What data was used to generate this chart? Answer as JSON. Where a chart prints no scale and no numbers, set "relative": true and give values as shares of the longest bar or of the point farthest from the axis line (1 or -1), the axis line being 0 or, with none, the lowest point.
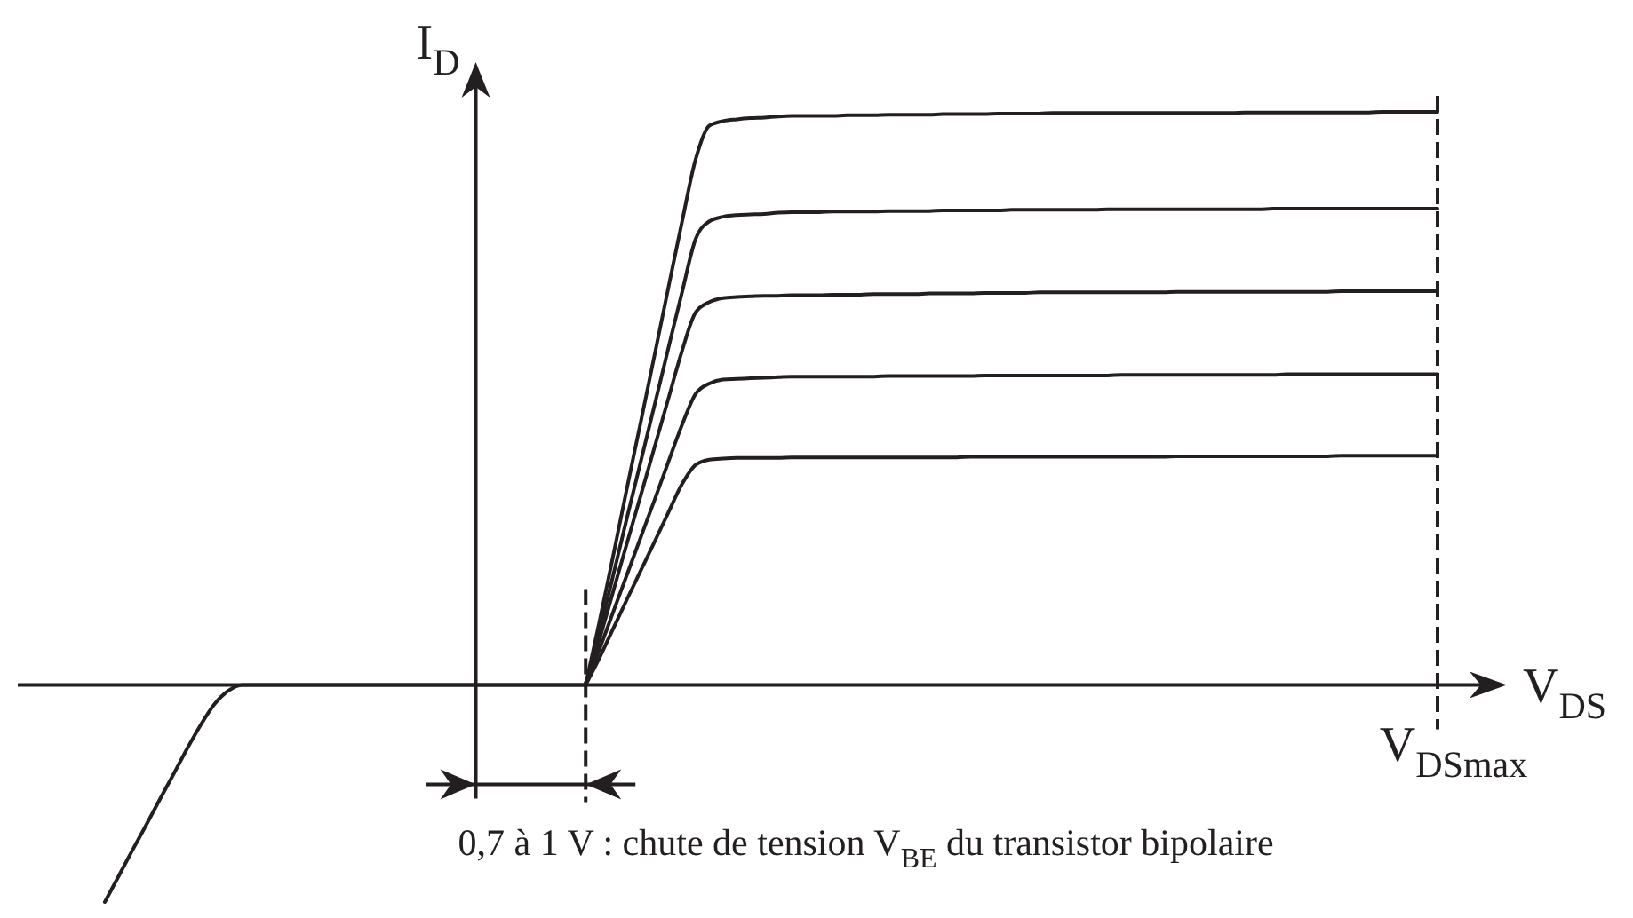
{
  "chart_data": {
    "type": "line",
    "relative": true,
    "xlabel": "V$_{DS}$",
    "ylabel": "I$_{D}$",
    "categories": [
      null,
      null,
      null,
      null,
      null,
      null,
      null,
      null,
      null,
      null,
      null,
      null,
      null,
      null,
      null,
      null,
      null,
      null,
      null,
      null,
      null,
      null,
      null,
      null,
      null,
      null,
      null,
      null,
      null,
      null,
      null,
      null,
      null,
      null,
      null,
      null,
      null,
      null,
      null,
      null,
      null,
      null,
      null,
      null,
      null,
      null,
      null,
      null,
      null,
      null,
      null,
      null,
      null,
      null,
      null,
      null,
      null,
      null,
      null,
      null,
      null,
      null,
      null,
      null,
      null,
      null,
      null,
      null,
      null,
      null,
      null,
      null,
      null,
      null,
      null,
      null,
      null,
      null,
      null,
      null,
      null,
      null,
      null,
      null,
      null,
      null,
      null,
      null,
      null,
      null,
      null,
      null,
      null,
      null,
      null,
      null,
      null,
      null
    ],
    "series": [
      {
        "color": "#231f20",
        "values": [
          -0.379,
          -0.334,
          -0.289,
          -0.245,
          -0.2,
          -0.156,
          -0.111,
          -0.069,
          -0.033,
          -0.01,
          0,
          0,
          0,
          0,
          0,
          0,
          0,
          0,
          0,
          0,
          0,
          0,
          0,
          0,
          0,
          0,
          0,
          0,
          0,
          0,
          0,
          0,
          0,
          0,
          0,
          0,
          null,
          null,
          null,
          null,
          null,
          null,
          null,
          null,
          null,
          null,
          null,
          null,
          null,
          null,
          null,
          null,
          null,
          null,
          null,
          null,
          null,
          null,
          null,
          null,
          null,
          null,
          null,
          null,
          null,
          null,
          null,
          null,
          null,
          null,
          null,
          null,
          null,
          null,
          null,
          null,
          null,
          null,
          null,
          null,
          null,
          null,
          null,
          null,
          null,
          null,
          null,
          null,
          null,
          null,
          null,
          null,
          null,
          null,
          null,
          null,
          null,
          null
        ]
      },
      {
        "color": "#231f20",
        "values": [
          null,
          null,
          null,
          null,
          null,
          null,
          null,
          null,
          null,
          null,
          null,
          null,
          null,
          null,
          null,
          null,
          null,
          null,
          null,
          null,
          null,
          null,
          null,
          null,
          null,
          null,
          null,
          null,
          null,
          null,
          null,
          null,
          null,
          null,
          null,
          0,
          0.11,
          0.225,
          0.343,
          0.458,
          0.574,
          0.691,
          0.807,
          0.917,
          0.976,
          0.984,
          0.987,
          0.989,
          0.99,
          0.992,
          0.993,
          0.993,
          0.993,
          0.993,
          0.994,
          0.994,
          0.994,
          0.995,
          0.995,
          0.995,
          0.995,
          0.996,
          0.996,
          0.996,
          0.996,
          0.997,
          0.997,
          0.997,
          0.997,
          0.998,
          0.998,
          0.998,
          0.998,
          0.998,
          0.998,
          0.998,
          0.998,
          0.998,
          0.998,
          0.998,
          0.998,
          0.998,
          0.998,
          0.999,
          0.999,
          0.999,
          0.999,
          0.999,
          0.999,
          0.999,
          0.999,
          0.999,
          0.999,
          1,
          1,
          1,
          1,
          1
        ]
      },
      {
        "color": "#231f20",
        "values": [
          null,
          null,
          null,
          null,
          null,
          null,
          null,
          null,
          null,
          null,
          null,
          null,
          null,
          null,
          null,
          null,
          null,
          null,
          null,
          null,
          null,
          null,
          null,
          null,
          null,
          null,
          null,
          null,
          null,
          null,
          null,
          null,
          null,
          null,
          null,
          0,
          0.093,
          0.191,
          0.291,
          0.389,
          0.487,
          0.586,
          0.684,
          0.778,
          0.809,
          0.817,
          0.82,
          0.821,
          0.822,
          0.824,
          0.825,
          0.825,
          0.825,
          0.826,
          0.826,
          0.826,
          0.826,
          0.827,
          0.827,
          0.827,
          0.827,
          0.828,
          0.828,
          0.828,
          0.828,
          0.828,
          0.829,
          0.829,
          0.829,
          0.829,
          0.829,
          0.829,
          0.829,
          0.83,
          0.83,
          0.83,
          0.83,
          0.83,
          0.83,
          0.83,
          0.83,
          0.83,
          0.83,
          0.83,
          0.83,
          0.831,
          0.831,
          0.831,
          0.831,
          0.831,
          0.831,
          0.831,
          0.831,
          0.831,
          0.831,
          0.831,
          0.831,
          0.831
        ]
      },
      {
        "color": "#231f20",
        "values": [
          null,
          null,
          null,
          null,
          null,
          null,
          null,
          null,
          null,
          null,
          null,
          null,
          null,
          null,
          null,
          null,
          null,
          null,
          null,
          null,
          null,
          null,
          null,
          null,
          null,
          null,
          null,
          null,
          null,
          null,
          null,
          null,
          null,
          null,
          null,
          0,
          0.079,
          0.163,
          0.247,
          0.33,
          0.414,
          0.498,
          0.582,
          0.65,
          0.668,
          0.675,
          0.677,
          0.678,
          0.679,
          0.679,
          0.68,
          0.68,
          0.68,
          0.681,
          0.681,
          0.681,
          0.682,
          0.682,
          0.682,
          0.682,
          0.683,
          0.683,
          0.683,
          0.683,
          0.684,
          0.684,
          0.684,
          0.684,
          0.685,
          0.685,
          0.685,
          0.685,
          0.685,
          0.685,
          0.685,
          0.685,
          0.685,
          0.685,
          0.686,
          0.686,
          0.686,
          0.686,
          0.686,
          0.686,
          0.686,
          0.686,
          0.686,
          0.686,
          0.686,
          0.686,
          0.687,
          0.687,
          0.687,
          0.687,
          0.687,
          0.687,
          0.687,
          0.687
        ]
      },
      {
        "color": "#231f20",
        "values": [
          null,
          null,
          null,
          null,
          null,
          null,
          null,
          null,
          null,
          null,
          null,
          null,
          null,
          null,
          null,
          null,
          null,
          null,
          null,
          null,
          null,
          null,
          null,
          null,
          null,
          null,
          null,
          null,
          null,
          null,
          null,
          null,
          null,
          null,
          null,
          0,
          0.062,
          0.127,
          0.192,
          0.257,
          0.322,
          0.388,
          0.453,
          0.508,
          0.526,
          0.533,
          0.534,
          0.535,
          0.536,
          0.537,
          0.538,
          0.538,
          0.538,
          0.538,
          0.538,
          0.538,
          0.538,
          0.539,
          0.539,
          0.539,
          0.539,
          0.539,
          0.539,
          0.539,
          0.54,
          0.54,
          0.54,
          0.54,
          0.54,
          0.54,
          0.54,
          0.54,
          0.54,
          0.54,
          0.541,
          0.541,
          0.541,
          0.541,
          0.541,
          0.541,
          0.541,
          0.541,
          0.541,
          0.541,
          0.541,
          0.541,
          0.542,
          0.542,
          0.542,
          0.542,
          0.542,
          0.542,
          0.542,
          0.542,
          0.542,
          0.542,
          0.542,
          0.542
        ]
      },
      {
        "color": "#231f20",
        "values": [
          null,
          null,
          null,
          null,
          null,
          null,
          null,
          null,
          null,
          null,
          null,
          null,
          null,
          null,
          null,
          null,
          null,
          null,
          null,
          null,
          null,
          null,
          null,
          null,
          null,
          null,
          null,
          null,
          null,
          null,
          null,
          null,
          null,
          null,
          null,
          0,
          0.047,
          0.098,
          0.149,
          0.199,
          0.249,
          0.3,
          0.35,
          0.384,
          0.393,
          0.395,
          0.396,
          0.396,
          0.396,
          0.396,
          0.397,
          0.397,
          0.397,
          0.397,
          0.397,
          0.397,
          0.397,
          0.397,
          0.397,
          0.397,
          0.397,
          0.397,
          0.397,
          0.398,
          0.398,
          0.398,
          0.398,
          0.398,
          0.398,
          0.398,
          0.398,
          0.398,
          0.398,
          0.398,
          0.398,
          0.398,
          0.398,
          0.398,
          0.399,
          0.399,
          0.399,
          0.399,
          0.399,
          0.399,
          0.399,
          0.399,
          0.399,
          0.399,
          0.399,
          0.399,
          0.4,
          0.4,
          0.4,
          0.4,
          0.4,
          0.4,
          0.4,
          0.4
        ]
      }
    ],
    "ref_lines": [
      {
        "axis": "x",
        "label": "V$_{DSmax}$",
        "color": "#231f20",
        "line_style": "dashed"
      }
    ],
    "annotations": [
      "0,7 à 1 V : chute de tension V$_{BE}$ du transistor bipolaire"
    ]
  }
}
